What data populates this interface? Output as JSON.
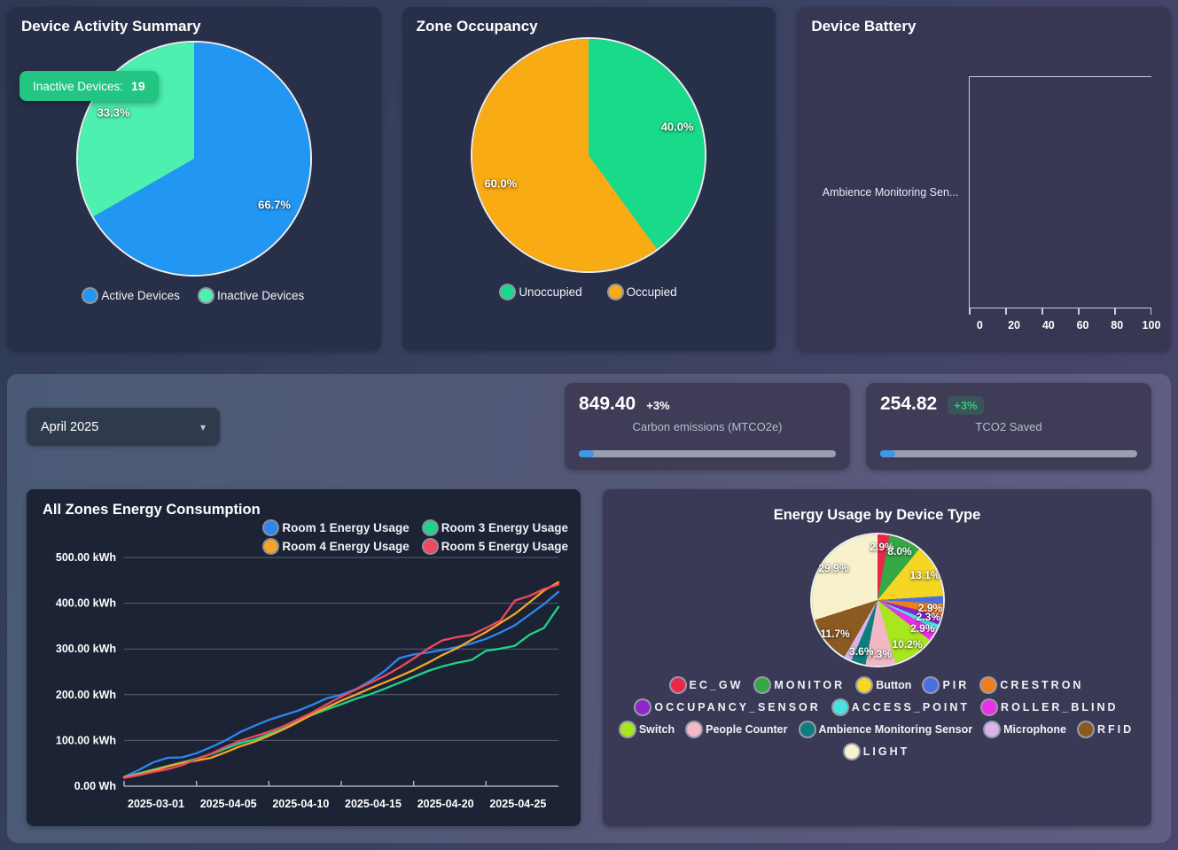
{
  "controls": {
    "month_select": {
      "value": "April 2025",
      "chevron_icon": "chevron-down-icon"
    }
  },
  "kpis": [
    {
      "value": "849.40",
      "delta": "+3%",
      "delta_color": "#ffffff",
      "delta_badge": false,
      "label": "Carbon emissions (MTCO2e)",
      "progress_pct": 6
    },
    {
      "value": "254.82",
      "delta": "+3%",
      "delta_color": "#2ecc71",
      "delta_badge": true,
      "label": "TCO2 Saved",
      "progress_pct": 6
    }
  ],
  "tooltip": {
    "label": "Inactive Devices:",
    "value": "19",
    "color": "#22c581"
  },
  "chart_data": [
    {
      "type": "pie",
      "title": "Device Activity Summary",
      "legend_position": "bottom",
      "label_r": 0.8,
      "min_label_pct": 0,
      "slices": [
        {
          "label": "Active Devices",
          "pct": 66.7,
          "color": "#2196f3"
        },
        {
          "label": "Inactive Devices",
          "pct": 33.3,
          "color": "#4df0af"
        }
      ]
    },
    {
      "type": "pie",
      "title": "Zone Occupancy",
      "legend_position": "bottom",
      "label_r": 0.8,
      "min_label_pct": 0,
      "slices": [
        {
          "label": "Unoccupied",
          "pct": 40.0,
          "color": "#19d98b"
        },
        {
          "label": "Occupied",
          "pct": 60.0,
          "color": "#f9ab13"
        }
      ]
    },
    {
      "type": "bar",
      "title": "Device Battery",
      "orientation": "horizontal",
      "categories": [
        "Ambience Monitoring Sen..."
      ],
      "values": [
        0
      ],
      "xlim": [
        0,
        100
      ],
      "x_ticks": [
        "0",
        "20",
        "40",
        "60",
        "80",
        "100"
      ]
    },
    {
      "type": "line",
      "title": "All Zones Energy Consumption",
      "ylabel": "kWh",
      "ylim": [
        0,
        500
      ],
      "y_tick_labels": [
        "0.00 Wh",
        "100.00 kWh",
        "200.00 kWh",
        "300.00 kWh",
        "400.00 kWh",
        "500.00 kWh"
      ],
      "x_tick_labels": [
        "2025-03-01",
        "2025-04-05",
        "2025-04-10",
        "2025-04-15",
        "2025-04-20",
        "2025-04-25"
      ],
      "x_tick_index": [
        0,
        5,
        10,
        15,
        20,
        25
      ],
      "grid": true,
      "legend_position": "top-right",
      "series": [
        {
          "name": "Room 1 Energy Usage",
          "color": "#2e86f0",
          "values": [
            20,
            35,
            52,
            62,
            63,
            72,
            85,
            100,
            118,
            132,
            145,
            155,
            165,
            178,
            192,
            200,
            212,
            230,
            252,
            280,
            288,
            292,
            298,
            304,
            312,
            322,
            336,
            352,
            375,
            398,
            425
          ]
        },
        {
          "name": "Room 3 Energy Usage",
          "color": "#21d387",
          "values": [
            20,
            28,
            36,
            44,
            52,
            60,
            70,
            82,
            94,
            102,
            114,
            126,
            141,
            156,
            168,
            179,
            191,
            201,
            213,
            226,
            239,
            252,
            262,
            270,
            276,
            296,
            301,
            307,
            331,
            346,
            392
          ]
        },
        {
          "name": "Room 4 Energy Usage",
          "color": "#f2a52a",
          "values": [
            20,
            26,
            34,
            43,
            51,
            56,
            62,
            74,
            87,
            97,
            110,
            124,
            140,
            157,
            172,
            187,
            200,
            214,
            227,
            240,
            254,
            270,
            287,
            302,
            320,
            337,
            357,
            377,
            402,
            428,
            446
          ]
        },
        {
          "name": "Room 5 Energy Usage",
          "color": "#ef4860",
          "values": [
            18,
            24,
            31,
            37,
            46,
            59,
            71,
            86,
            99,
            109,
            119,
            131,
            146,
            161,
            179,
            196,
            211,
            226,
            241,
            259,
            279,
            301,
            319,
            326,
            331,
            346,
            362,
            406,
            416,
            431,
            441
          ]
        }
      ]
    },
    {
      "type": "pie",
      "title": "Energy Usage by Device Type",
      "legend_position": "bottom",
      "label_r": 0.82,
      "min_label_pct": 2.2,
      "slices": [
        {
          "label": "EC_GW",
          "pct": 2.9,
          "color": "#e8274b"
        },
        {
          "label": "MONITOR",
          "pct": 8.0,
          "color": "#33a843"
        },
        {
          "label": "Button",
          "pct": 13.1,
          "color": "#f5d623"
        },
        {
          "label": "PIR",
          "pct": 1.9,
          "color": "#4a6fe3"
        },
        {
          "label": "CRESTRON",
          "pct": 2.9,
          "color": "#ef7f1a"
        },
        {
          "label": "OCCUPANCY_SENSOR",
          "pct": 2.3,
          "color": "#8e24c9"
        },
        {
          "label": "ACCESS_POINT",
          "pct": 1.4,
          "color": "#46e3e3"
        },
        {
          "label": "ROLLER_BLIND",
          "pct": 2.9,
          "color": "#ea2fea"
        },
        {
          "label": "Switch",
          "pct": 10.2,
          "color": "#a8e61d"
        },
        {
          "label": "People Counter",
          "pct": 7.3,
          "color": "#f2b8c6"
        },
        {
          "label": "Ambience Monitoring Sensor",
          "pct": 3.6,
          "color": "#0e7d7d"
        },
        {
          "label": "Microphone",
          "pct": 1.9,
          "color": "#d9b3ea"
        },
        {
          "label": "RFID",
          "pct": 11.7,
          "color": "#8a5a20"
        },
        {
          "label": "LIGHT",
          "pct": 29.9,
          "color": "#f7f2cc"
        }
      ]
    }
  ]
}
